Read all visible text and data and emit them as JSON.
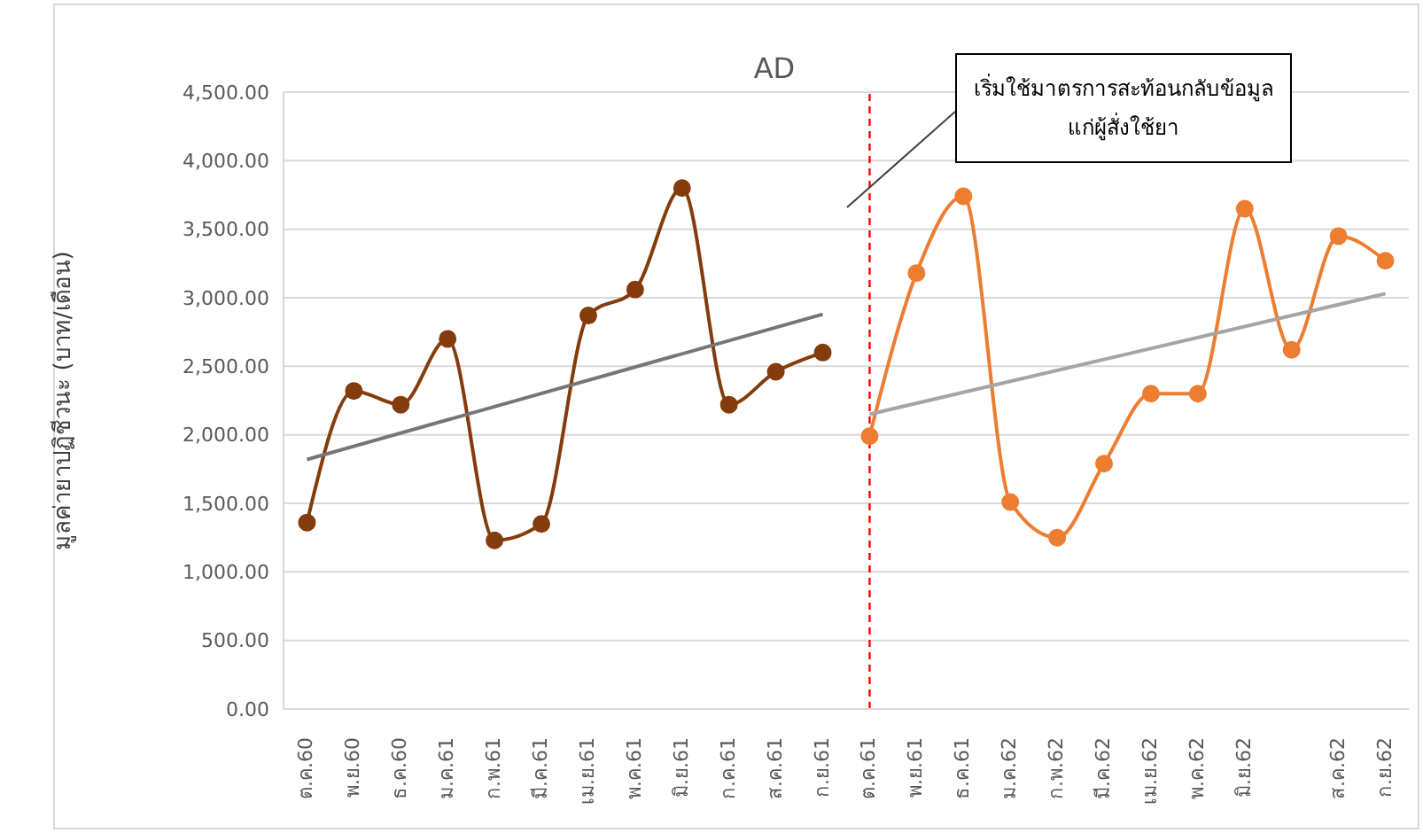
{
  "chart_data": {
    "type": "line",
    "title": "AD",
    "ylabel": "มูลค่ายาปฏิชีวนะ (บาท/เดือน)",
    "categories": [
      "ต.ค.60",
      "พ.ย.60",
      "ธ.ค.60",
      "ม.ค.61",
      "ก.พ.61",
      "มี.ค.61",
      "เม.ย.61",
      "พ.ค.61",
      "มิ.ย.61",
      "ก.ค.61",
      "ส.ค.61",
      "ก.ย.61",
      "ต.ค.61",
      "พ.ย.61",
      "ธ.ค.61",
      "ม.ค.62",
      "ก.พ.62",
      "มี.ค.62",
      "เม.ย.62",
      "พ.ค.62",
      "มิ.ย.62",
      null,
      "ส.ค.62",
      "ก.ย.62"
    ],
    "series": [
      {
        "color": "#843c0c",
        "values": [
          1360,
          2320,
          2220,
          2700,
          1230,
          1350,
          2870,
          3060,
          3800,
          2220,
          2460,
          2600,
          null,
          null,
          null,
          null,
          null,
          null,
          null,
          null,
          null,
          null,
          null,
          null
        ]
      },
      {
        "color": "#ed7d31",
        "values": [
          null,
          null,
          null,
          null,
          null,
          null,
          null,
          null,
          null,
          null,
          null,
          null,
          1990,
          3180,
          3740,
          1510,
          1250,
          1790,
          2300,
          2300,
          3650,
          2620,
          3450,
          3270
        ]
      },
      {
        "type": "line",
        "color": "#767676",
        "marker": "none",
        "x": [
          "ต.ค.60",
          "ก.ย.61"
        ],
        "values": [
          1820,
          2880
        ]
      },
      {
        "type": "line",
        "color": "#a5a5a5",
        "marker": "none",
        "x": [
          "ต.ค.61",
          "ก.ย.62"
        ],
        "values": [
          2150,
          3030
        ]
      }
    ],
    "ylim": [
      0,
      4500
    ],
    "yticks": [
      {
        "value": 0,
        "label": "0.00"
      },
      {
        "value": 500,
        "label": "500.00"
      },
      {
        "value": 1000,
        "label": "1,000.00"
      },
      {
        "value": 1500,
        "label": "1,500.00"
      },
      {
        "value": 2000,
        "label": "2,000.00"
      },
      {
        "value": 2500,
        "label": "2,500.00"
      },
      {
        "value": 3000,
        "label": "3,000.00"
      },
      {
        "value": 3500,
        "label": "3,500.00"
      },
      {
        "value": 4000,
        "label": "4,000.00"
      },
      {
        "value": 4500,
        "label": "4,500.00"
      }
    ],
    "grid": "y",
    "marker": "circle",
    "line_style": "solid",
    "ref_lines": [
      {
        "axis": "x",
        "value": "ต.ค.61",
        "color": "#ff0000",
        "line_style": "dashed"
      }
    ],
    "annotations": [
      "เริ่มใช้มาตรการสะท้อนกลับข้อมูล\nแก่ผู้สั่งใช้ยา"
    ]
  }
}
